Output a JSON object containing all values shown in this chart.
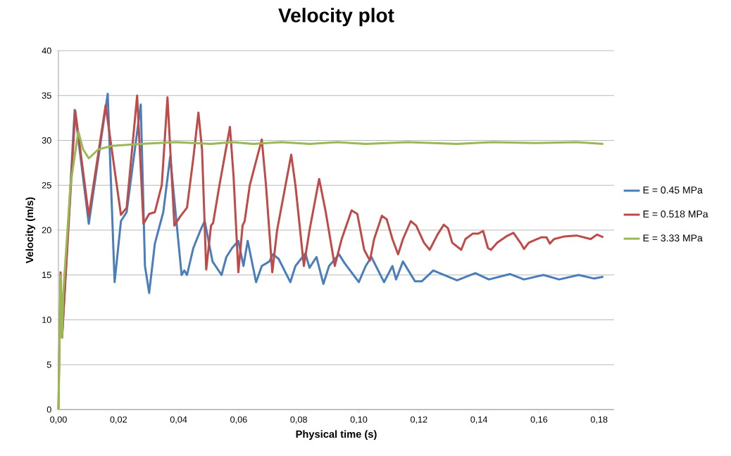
{
  "chart_data": {
    "type": "line",
    "title": "Velocity plot",
    "xlabel": "Physical time (s)",
    "ylabel": "Velocity (m/s)",
    "xlim": [
      0,
      0.185
    ],
    "ylim": [
      0,
      40
    ],
    "xticks": [
      {
        "value": 0,
        "label": "0,00"
      },
      {
        "value": 0.02,
        "label": "0,02"
      },
      {
        "value": 0.04,
        "label": "0,04"
      },
      {
        "value": 0.06,
        "label": "0,06"
      },
      {
        "value": 0.08,
        "label": "0,08"
      },
      {
        "value": 0.1,
        "label": "0,10"
      },
      {
        "value": 0.12,
        "label": "0,12"
      },
      {
        "value": 0.14,
        "label": "0,14"
      },
      {
        "value": 0.16,
        "label": "0,16"
      },
      {
        "value": 0.18,
        "label": "0,18"
      }
    ],
    "yticks": [
      0,
      5,
      10,
      15,
      20,
      25,
      30,
      35,
      40
    ],
    "grid": "y",
    "legend": "right",
    "marker": "none",
    "line_style": "solid",
    "series": [
      {
        "name": "E = 0.45 MPa",
        "color": "#4a7ebb",
        "x": [
          0.0012,
          0.0054,
          0.0101,
          0.0164,
          0.0187,
          0.0208,
          0.0227,
          0.0274,
          0.0288,
          0.0302,
          0.0321,
          0.0349,
          0.0372,
          0.041,
          0.0419,
          0.0428,
          0.0449,
          0.0473,
          0.0487,
          0.0513,
          0.0543,
          0.0559,
          0.0578,
          0.0599,
          0.0616,
          0.063,
          0.0658,
          0.0677,
          0.0702,
          0.0714,
          0.0733,
          0.0772,
          0.0789,
          0.0822,
          0.0836,
          0.0859,
          0.0882,
          0.0901,
          0.0934,
          0.0953,
          0.1,
          0.1023,
          0.1042,
          0.1084,
          0.1112,
          0.1124,
          0.1147,
          0.1187,
          0.121,
          0.1248,
          0.1327,
          0.1388,
          0.1433,
          0.1503,
          0.155,
          0.1615,
          0.1667,
          0.1732,
          0.1784,
          0.1814
        ],
        "values": [
          8,
          33.4,
          20.7,
          35.2,
          14.2,
          21,
          22,
          34,
          16,
          13,
          18.5,
          22,
          28.2,
          15,
          15.5,
          15,
          18,
          20,
          21,
          16.5,
          15,
          17,
          18,
          18.8,
          16,
          18.8,
          14.2,
          16,
          16.5,
          17.3,
          16.8,
          14.2,
          16,
          17.4,
          15.8,
          17,
          14,
          16,
          17.3,
          16.3,
          14.2,
          16,
          17,
          14.2,
          16,
          14.5,
          16.5,
          14.3,
          14.3,
          15.5,
          14.4,
          15.2,
          14.5,
          15.1,
          14.5,
          15,
          14.5,
          15,
          14.6,
          14.8
        ]
      },
      {
        "name": "E = 0.518 MPa",
        "color": "#be4b48",
        "x": [
          0,
          0.0007,
          0.0012,
          0.0056,
          0.0101,
          0.0157,
          0.0208,
          0.0227,
          0.0262,
          0.0283,
          0.0302,
          0.0321,
          0.0344,
          0.0363,
          0.0386,
          0.0405,
          0.0428,
          0.0449,
          0.0466,
          0.0478,
          0.0492,
          0.0508,
          0.0515,
          0.0536,
          0.0571,
          0.0583,
          0.0599,
          0.0613,
          0.062,
          0.0637,
          0.0677,
          0.0691,
          0.0712,
          0.0728,
          0.0756,
          0.0775,
          0.0789,
          0.0817,
          0.0836,
          0.0868,
          0.089,
          0.092,
          0.0943,
          0.0976,
          0.0995,
          0.1018,
          0.1037,
          0.1051,
          0.1077,
          0.1093,
          0.1112,
          0.1131,
          0.1147,
          0.1173,
          0.1191,
          0.1217,
          0.1236,
          0.1262,
          0.1283,
          0.1297,
          0.1311,
          0.1341,
          0.1355,
          0.1379,
          0.1397,
          0.1414,
          0.143,
          0.144,
          0.1461,
          0.1491,
          0.1515,
          0.154,
          0.155,
          0.1566,
          0.1608,
          0.1625,
          0.1636,
          0.165,
          0.1685,
          0.1725,
          0.1772,
          0.1793,
          0.1814
        ],
        "values": [
          0,
          15.3,
          8,
          33.3,
          21.6,
          33.9,
          21.7,
          22.5,
          35,
          20.7,
          21.8,
          22,
          25,
          34.8,
          20.5,
          21.5,
          22.5,
          28,
          33.1,
          29,
          15.6,
          20.5,
          20.8,
          25,
          31.5,
          26,
          15.3,
          20.5,
          21,
          25,
          30.1,
          25,
          15.3,
          20,
          25,
          28.4,
          25,
          16,
          20,
          25.7,
          22,
          16,
          19,
          22.2,
          21.8,
          17.8,
          16.6,
          19,
          21.6,
          21.2,
          19,
          17.3,
          19,
          21,
          20.5,
          18.6,
          17.8,
          19.5,
          20.6,
          20.2,
          18.6,
          17.8,
          19,
          19.6,
          19.6,
          19.9,
          18,
          17.8,
          18.6,
          19.3,
          19.7,
          18.5,
          17.9,
          18.6,
          19.2,
          19.2,
          18.5,
          19,
          19.3,
          19.4,
          19,
          19.5,
          19.2
        ]
      },
      {
        "name": "E = 3.33 MPa",
        "color": "#98b954",
        "x": [
          0,
          0.0007,
          0.0012,
          0.0016,
          0.004,
          0.0066,
          0.0082,
          0.0101,
          0.0133,
          0.018,
          0.0274,
          0.0391,
          0.0508,
          0.0578,
          0.0648,
          0.0742,
          0.0836,
          0.0929,
          0.1023,
          0.1163,
          0.1327,
          0.1444,
          0.1585,
          0.1725,
          0.1814
        ],
        "values": [
          0,
          15,
          8,
          13,
          25,
          31,
          29,
          28,
          29,
          29.4,
          29.6,
          29.8,
          29.6,
          29.8,
          29.6,
          29.8,
          29.6,
          29.8,
          29.6,
          29.8,
          29.6,
          29.8,
          29.7,
          29.8,
          29.6
        ]
      }
    ]
  }
}
